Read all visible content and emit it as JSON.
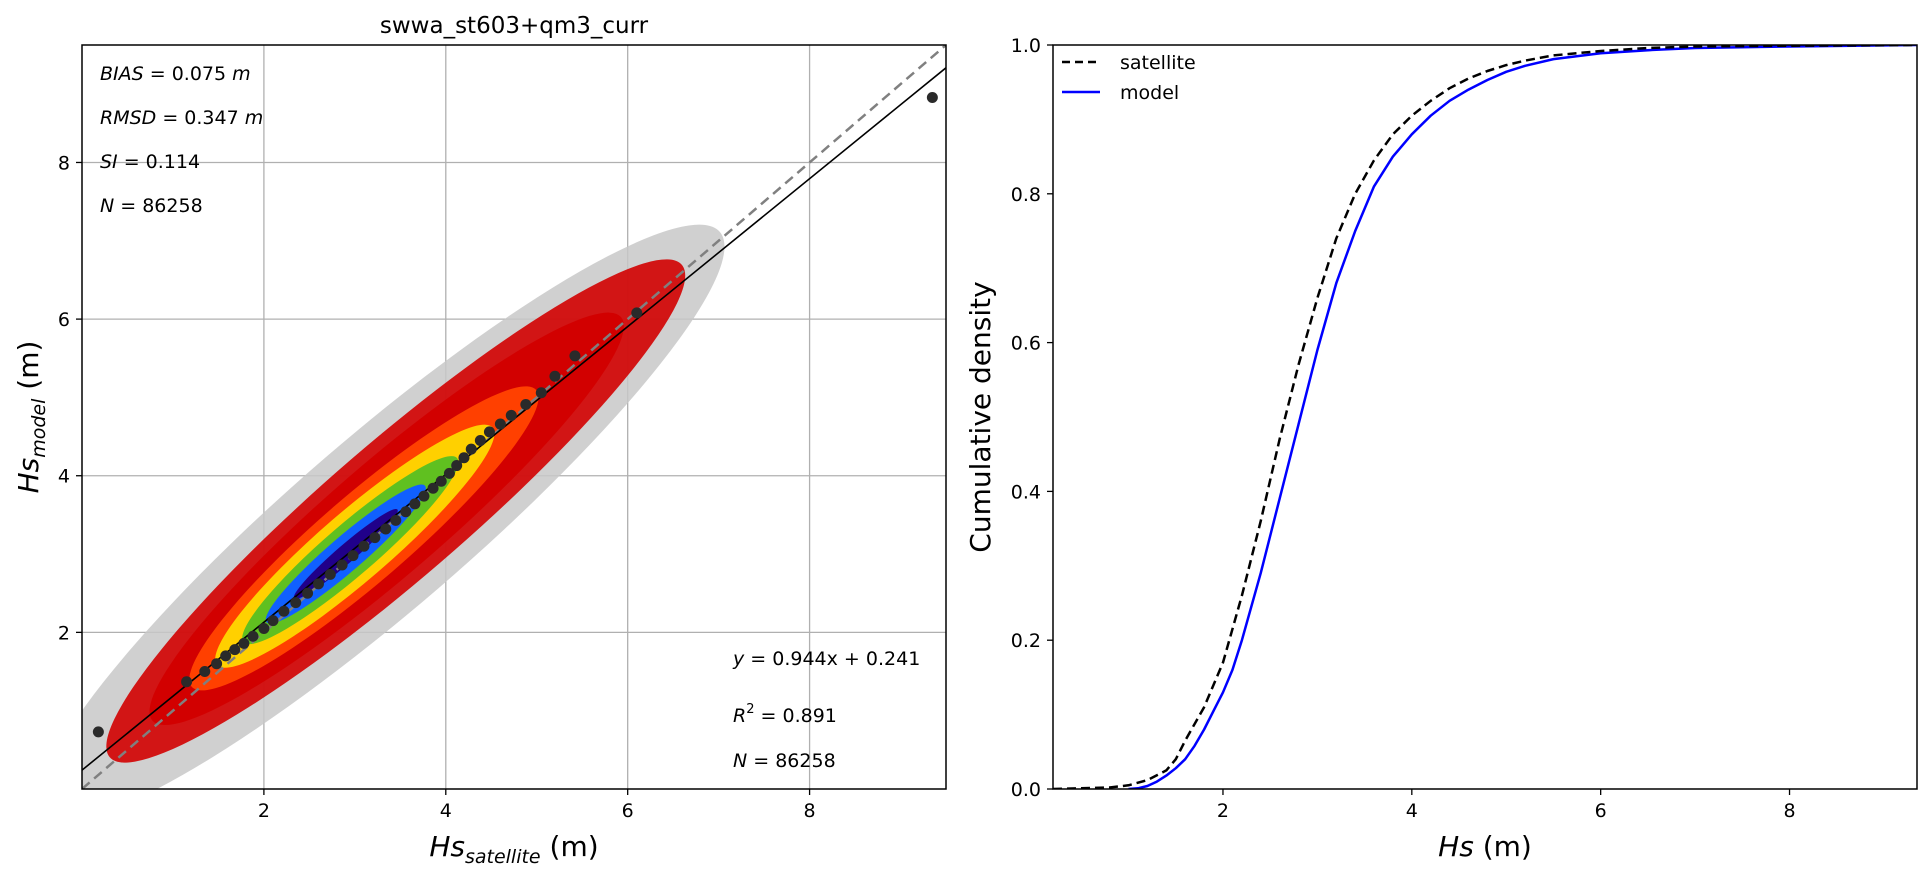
{
  "figure": {
    "background": "#ffffff"
  },
  "chart_data": [
    {
      "type": "scatter",
      "title": "swwa_st603+qm3_curr",
      "xlabel": {
        "base": "Hs",
        "sub": "satellite",
        "unit": "(m)"
      },
      "ylabel": {
        "base": "Hs",
        "sub": "model",
        "unit": "(m)"
      },
      "xlim": [
        0,
        9.5
      ],
      "ylim": [
        0,
        9.5
      ],
      "xticks": [
        2,
        4,
        6,
        8
      ],
      "yticks": [
        2,
        4,
        6,
        8
      ],
      "grid": true,
      "density_colormap": [
        "#c8c8c8",
        "#d20000",
        "#ff4000",
        "#ffd000",
        "#60c020",
        "#1060ff",
        "#20008a"
      ],
      "stats_top_left": [
        {
          "name": "BIAS",
          "value": "0.075",
          "unit": "m"
        },
        {
          "name": "RMSD",
          "value": "0.347",
          "unit": "m"
        },
        {
          "name": "SI",
          "value": "0.114",
          "unit": ""
        },
        {
          "name": "N",
          "value": "86258",
          "unit": ""
        }
      ],
      "fit": {
        "slope": 0.944,
        "intercept": 0.241,
        "text": "0.944x + 0.241",
        "color": "#000000"
      },
      "stats_bottom_right": [
        {
          "name": "R",
          "sup": "2",
          "value": "0.891"
        },
        {
          "name": "N",
          "sup": "",
          "value": "86258"
        }
      ],
      "one_to_one_color": "#808080",
      "qq_points": {
        "color": "#2a2a2a",
        "x": [
          0.18,
          1.15,
          1.35,
          1.48,
          1.58,
          1.68,
          1.78,
          1.88,
          2.0,
          2.1,
          2.22,
          2.35,
          2.48,
          2.6,
          2.73,
          2.86,
          2.98,
          3.1,
          3.22,
          3.34,
          3.45,
          3.56,
          3.66,
          3.76,
          3.86,
          3.95,
          4.04,
          4.12,
          4.2,
          4.28,
          4.38,
          4.48,
          4.6,
          4.72,
          4.88,
          5.05,
          5.2,
          5.42,
          6.1,
          9.35
        ],
        "y": [
          0.73,
          1.37,
          1.5,
          1.6,
          1.7,
          1.78,
          1.86,
          1.95,
          2.05,
          2.15,
          2.27,
          2.38,
          2.5,
          2.62,
          2.74,
          2.86,
          2.98,
          3.1,
          3.21,
          3.32,
          3.43,
          3.54,
          3.64,
          3.74,
          3.84,
          3.93,
          4.03,
          4.13,
          4.23,
          4.34,
          4.45,
          4.56,
          4.66,
          4.77,
          4.91,
          5.06,
          5.27,
          5.53,
          6.08,
          8.83
        ]
      }
    },
    {
      "type": "line",
      "title": "",
      "xlabel": {
        "base": "Hs",
        "unit": "(m)"
      },
      "ylabel": "Cumulative density",
      "xlim": [
        0.2,
        9.35
      ],
      "ylim": [
        0,
        1.0
      ],
      "xticks": [
        2,
        4,
        6,
        8
      ],
      "yticks": [
        0.0,
        0.2,
        0.4,
        0.6,
        0.8,
        1.0
      ],
      "grid": false,
      "legend": "top-left",
      "series": [
        {
          "name": "satellite",
          "color": "#000000",
          "dash": "dashed",
          "x": [
            0.2,
            0.8,
            1.0,
            1.2,
            1.4,
            1.5,
            1.6,
            1.8,
            2.0,
            2.2,
            2.4,
            2.6,
            2.8,
            3.0,
            3.2,
            3.4,
            3.6,
            3.8,
            4.0,
            4.2,
            4.4,
            4.6,
            4.8,
            5.0,
            5.2,
            5.5,
            6.0,
            6.5,
            7.0,
            8.0,
            9.35
          ],
          "y": [
            0.0,
            0.002,
            0.005,
            0.012,
            0.025,
            0.04,
            0.065,
            0.11,
            0.17,
            0.26,
            0.36,
            0.47,
            0.57,
            0.66,
            0.74,
            0.8,
            0.845,
            0.88,
            0.905,
            0.925,
            0.942,
            0.955,
            0.965,
            0.973,
            0.979,
            0.986,
            0.992,
            0.996,
            0.998,
            0.999,
            1.0
          ]
        },
        {
          "name": "model",
          "color": "#0000ff",
          "dash": "solid",
          "x": [
            1.0,
            1.1,
            1.2,
            1.3,
            1.4,
            1.5,
            1.6,
            1.7,
            1.8,
            1.9,
            2.0,
            2.1,
            2.2,
            2.4,
            2.6,
            2.8,
            3.0,
            3.2,
            3.4,
            3.6,
            3.8,
            4.0,
            4.2,
            4.4,
            4.6,
            4.8,
            5.0,
            5.2,
            5.5,
            6.0,
            6.5,
            7.0,
            8.0,
            9.35
          ],
          "y": [
            0.0,
            0.001,
            0.004,
            0.01,
            0.018,
            0.028,
            0.04,
            0.058,
            0.08,
            0.105,
            0.13,
            0.16,
            0.2,
            0.29,
            0.39,
            0.49,
            0.59,
            0.68,
            0.75,
            0.81,
            0.85,
            0.88,
            0.905,
            0.925,
            0.94,
            0.953,
            0.964,
            0.972,
            0.981,
            0.989,
            0.993,
            0.996,
            0.998,
            1.0
          ]
        }
      ]
    }
  ]
}
